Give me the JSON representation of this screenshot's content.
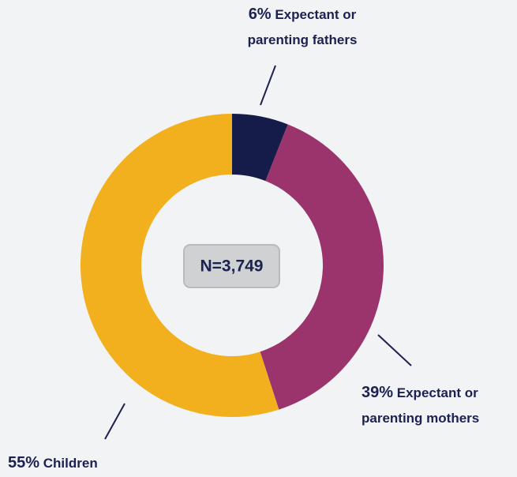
{
  "chart_data": {
    "type": "donut",
    "categories": [
      "Expectant or parenting fathers",
      "Expectant or parenting mothers",
      "Children"
    ],
    "values": [
      6,
      39,
      55
    ],
    "value_labels": [
      "6%",
      "39%",
      "55%"
    ],
    "colors": [
      "#161c4a",
      "#9b346c",
      "#f2b01e"
    ],
    "annotation": "N=3,749"
  }
}
